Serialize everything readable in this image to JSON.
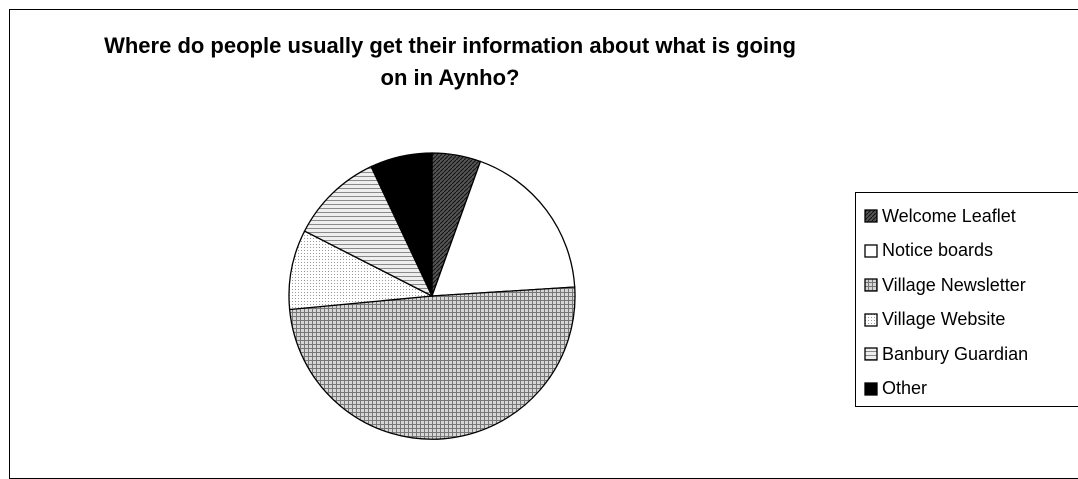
{
  "chart_data": {
    "type": "pie",
    "title": "Where do people usually get their information about what is going on in Aynho?",
    "categories": [
      "Welcome Leaflet",
      "Notice boards",
      "Village Newsletter",
      "Village Website",
      "Banbury Guardian",
      "Other"
    ],
    "values": [
      5.5,
      18.5,
      49.5,
      9,
      10.5,
      7
    ],
    "legend_position": "right",
    "start_angle_deg": 0,
    "direction": "clockwise"
  }
}
